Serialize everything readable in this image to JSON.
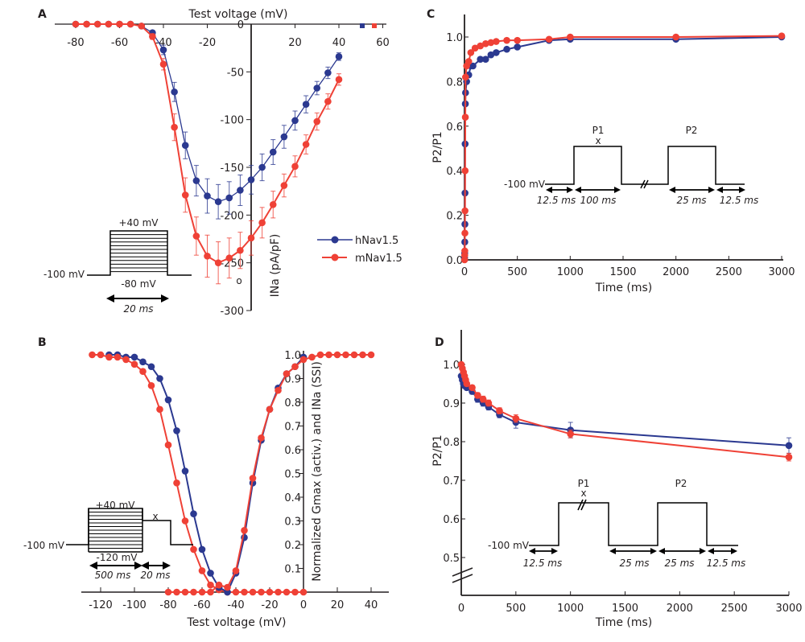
{
  "colors": {
    "hNav": "#2b3990",
    "mNav": "#ef4136",
    "axis": "#231f20"
  },
  "chart_data": [
    {
      "panel": "A",
      "type": "line",
      "title": "",
      "xlabel": "Test voltage (mV)",
      "ylabel": "INa (pA/pF)",
      "xlim": [
        -85,
        62
      ],
      "ylim": [
        -300,
        0
      ],
      "xticks": [
        -80,
        -60,
        -40,
        -20,
        20,
        40,
        60
      ],
      "xtick_labels": [
        "-80",
        "-60",
        "-40",
        "-20",
        "20",
        "40",
        "60"
      ],
      "yticks": [
        0,
        -50,
        -100,
        -150,
        -200,
        -250,
        -300
      ],
      "ytick_labels": [
        "0",
        "-50",
        "-100",
        "-150",
        "-200",
        "-250",
        "-300"
      ],
      "legend": {
        "placement": "right",
        "entries": [
          "hNav1.5",
          "mNav1.5"
        ]
      },
      "series": [
        {
          "name": "hNav1.5",
          "x": [
            -80,
            -75,
            -70,
            -65,
            -60,
            -55,
            -50,
            -45,
            -40,
            -35,
            -30,
            -25,
            -20,
            -15,
            -10,
            -5,
            0,
            5,
            10,
            15,
            20,
            25,
            30,
            35,
            40
          ],
          "y": [
            0,
            0,
            0,
            0,
            0,
            0,
            -2,
            -9,
            -27,
            -71,
            -127,
            -164,
            -180,
            -186,
            -182,
            -174,
            -163,
            -150,
            -134,
            -118,
            -101,
            -84,
            -67,
            -51,
            -34
          ],
          "err": [
            0,
            0,
            0,
            0,
            0,
            0,
            1,
            2,
            5,
            10,
            14,
            16,
            18,
            18,
            17,
            16,
            15,
            14,
            13,
            12,
            10,
            9,
            7,
            6,
            4
          ]
        },
        {
          "name": "mNav1.5",
          "x": [
            -80,
            -75,
            -70,
            -65,
            -60,
            -55,
            -50,
            -45,
            -40,
            -35,
            -30,
            -25,
            -20,
            -15,
            -10,
            -5,
            0,
            5,
            10,
            15,
            20,
            25,
            30,
            35,
            40
          ],
          "y": [
            0,
            0,
            0,
            0,
            0,
            0,
            -2,
            -13,
            -42,
            -108,
            -179,
            -222,
            -243,
            -250,
            -245,
            -237,
            -224,
            -208,
            -189,
            -169,
            -149,
            -126,
            -102,
            -81,
            -58
          ],
          "err": [
            0,
            0,
            0,
            0,
            0,
            0,
            1,
            3,
            6,
            14,
            18,
            20,
            22,
            22,
            21,
            19,
            18,
            16,
            14,
            12,
            11,
            10,
            9,
            8,
            6
          ]
        }
      ],
      "annotations": {
        "protocol_top": "+40 mV",
        "protocol_hold": "-100 mV",
        "protocol_bottom": "-80 mV",
        "protocol_duration": "20 ms",
        "stray_marker": "o"
      }
    },
    {
      "panel": "B",
      "type": "line",
      "xlabel": "Test voltage (mV)",
      "ylabel": "Normalized Gmax (activ.) and INa (SSI)",
      "xlim": [
        -130,
        50
      ],
      "ylim": [
        0,
        1.0
      ],
      "xticks": [
        -120,
        -100,
        -80,
        -60,
        -40,
        -20,
        0,
        20,
        40
      ],
      "xtick_labels": [
        "-120",
        "-100",
        "-80",
        "-60",
        "-40",
        "-20",
        "0",
        "20",
        "40"
      ],
      "yticks": [
        0.1,
        0.2,
        0.3,
        0.4,
        0.5,
        0.6,
        0.7,
        0.8,
        0.9,
        1.0
      ],
      "ytick_labels": [
        "0.1",
        "0.2",
        "0.3",
        "0.4",
        "0.5",
        "0.6",
        "0.7",
        "0.8",
        "0.9",
        "1.0"
      ],
      "series": [
        {
          "name": "hNav1.5 SSI",
          "x": [
            -115,
            -110,
            -105,
            -100,
            -95,
            -90,
            -85,
            -80,
            -75,
            -70,
            -65,
            -60,
            -55,
            -50,
            -45
          ],
          "y": [
            1.0,
            1.0,
            0.99,
            0.99,
            0.97,
            0.95,
            0.9,
            0.81,
            0.68,
            0.51,
            0.33,
            0.18,
            0.08,
            0.02,
            0.0
          ]
        },
        {
          "name": "mNav1.5 SSI",
          "x": [
            -125,
            -120,
            -115,
            -110,
            -105,
            -100,
            -95,
            -90,
            -85,
            -80,
            -75,
            -70,
            -65,
            -60,
            -55,
            -50,
            -45,
            -40,
            -35,
            -30,
            -25,
            -20,
            -15,
            -10,
            -5,
            0
          ],
          "y": [
            1.0,
            1.0,
            0.99,
            0.99,
            0.98,
            0.96,
            0.93,
            0.87,
            0.77,
            0.62,
            0.46,
            0.3,
            0.18,
            0.09,
            0.03,
            0.01,
            0.0,
            0,
            0,
            0,
            0,
            0,
            0,
            0,
            0,
            0
          ]
        },
        {
          "name": "hNav1.5 activation",
          "x": [
            -50,
            -45,
            -40,
            -35,
            -30,
            -25,
            -20,
            -15,
            -10,
            -5,
            0
          ],
          "y": [
            0.02,
            0.0,
            0.08,
            0.23,
            0.46,
            0.64,
            0.77,
            0.86,
            0.92,
            0.95,
            0.99
          ]
        },
        {
          "name": "mNav1.5 activation",
          "x": [
            -80,
            -75,
            -70,
            -65,
            -60,
            -55,
            -50,
            -45,
            -40,
            -35,
            -30,
            -25,
            -20,
            -15,
            -10,
            -5,
            0,
            5,
            10,
            15,
            20,
            25,
            30,
            35,
            40
          ],
          "y": [
            0,
            0,
            0,
            0,
            0,
            0,
            0.03,
            0.02,
            0.09,
            0.26,
            0.48,
            0.65,
            0.77,
            0.85,
            0.92,
            0.95,
            0.98,
            0.99,
            1.0,
            1.0,
            1.0,
            1.0,
            1.0,
            1.0,
            1.0
          ]
        }
      ],
      "annotations": {
        "protocol_top": "+40 mV",
        "protocol_hold": "-100 mV",
        "protocol_bottom": "-120 mV",
        "protocol_x": "x",
        "duration_1": "500 ms",
        "duration_2": "20 ms"
      }
    },
    {
      "panel": "C",
      "type": "line",
      "xlabel": "Time (ms)",
      "ylabel": "P2/P1",
      "xlim": [
        0,
        3000
      ],
      "ylim": [
        0,
        1.0
      ],
      "xticks": [
        0,
        500,
        1000,
        1500,
        2000,
        2500,
        3000
      ],
      "xtick_labels": [
        "0",
        "500",
        "1000",
        "1500",
        "2000",
        "2500",
        "3000"
      ],
      "yticks": [
        0.0,
        0.2,
        0.4,
        0.6,
        0.8,
        1.0
      ],
      "ytick_labels": [
        "0.0",
        "0.2",
        "0.4",
        "0.6",
        "0.8",
        "1.0"
      ],
      "series": [
        {
          "name": "hNav1.5",
          "x": [
            1,
            2,
            3,
            4,
            5,
            6,
            8,
            10,
            20,
            40,
            60,
            80,
            150,
            200,
            250,
            300,
            400,
            500,
            800,
            1000,
            2000,
            3000
          ],
          "y": [
            0.01,
            0.03,
            0.08,
            0.16,
            0.3,
            0.52,
            0.7,
            0.75,
            0.8,
            0.83,
            0.87,
            0.87,
            0.9,
            0.9,
            0.92,
            0.93,
            0.945,
            0.955,
            0.985,
            0.99,
            0.99,
            1.0
          ]
        },
        {
          "name": "mNav1.5",
          "x": [
            1,
            2,
            3,
            4,
            5,
            6,
            8,
            10,
            20,
            40,
            60,
            100,
            150,
            200,
            250,
            300,
            400,
            500,
            800,
            1000,
            2000,
            3000
          ],
          "y": [
            0.0,
            0.02,
            0.04,
            0.12,
            0.22,
            0.4,
            0.64,
            0.82,
            0.87,
            0.89,
            0.93,
            0.95,
            0.96,
            0.97,
            0.975,
            0.98,
            0.985,
            0.985,
            0.99,
            1.0,
            1.0,
            1.005
          ]
        }
      ],
      "annotations": {
        "p1": "P1",
        "p2": "P2",
        "x_mark": "x",
        "hold": "-100 mV",
        "d1": "12.5 ms",
        "d2": "100 ms",
        "d3": "25 ms",
        "d4": "12.5 ms"
      }
    },
    {
      "panel": "D",
      "type": "line",
      "xlabel": "Time (ms)",
      "ylabel": "P2/P1",
      "xlim": [
        0,
        3000
      ],
      "ylim": [
        0.5,
        1.0
      ],
      "axis_break": true,
      "xticks": [
        0,
        500,
        1000,
        1500,
        2000,
        2500,
        3000
      ],
      "xtick_labels": [
        "0",
        "500",
        "1000",
        "1500",
        "2000",
        "2500",
        "3000"
      ],
      "yticks": [
        0.5,
        0.6,
        0.7,
        0.8,
        0.9,
        1.0
      ],
      "ytick_labels": [
        "0.5",
        "0.6",
        "0.7",
        "0.8",
        "0.9",
        "1.0"
      ],
      "series": [
        {
          "name": "hNav1.5",
          "x": [
            0,
            10,
            20,
            30,
            50,
            100,
            150,
            200,
            250,
            350,
            500,
            1000,
            3000
          ],
          "y": [
            0.97,
            0.96,
            0.95,
            0.945,
            0.94,
            0.93,
            0.91,
            0.9,
            0.89,
            0.87,
            0.85,
            0.83,
            0.79
          ],
          "err": [
            0.005,
            0.005,
            0.005,
            0.005,
            0.006,
            0.007,
            0.008,
            0.008,
            0.008,
            0.008,
            0.015,
            0.02,
            0.02
          ]
        },
        {
          "name": "mNav1.5",
          "x": [
            0,
            10,
            20,
            30,
            40,
            50,
            100,
            150,
            200,
            250,
            350,
            500,
            1000,
            3000
          ],
          "y": [
            1.0,
            0.99,
            0.98,
            0.97,
            0.96,
            0.95,
            0.94,
            0.92,
            0.91,
            0.9,
            0.88,
            0.86,
            0.82,
            0.76
          ],
          "err": [
            0.004,
            0.004,
            0.004,
            0.005,
            0.005,
            0.006,
            0.006,
            0.007,
            0.008,
            0.008,
            0.008,
            0.01,
            0.01,
            0.01
          ]
        }
      ],
      "annotations": {
        "p1": "P1",
        "p2": "P2",
        "x_mark": "x",
        "hold": "-100 mV",
        "d1": "12.5 ms",
        "d2": "25 ms",
        "d3": "25 ms",
        "d4": "12.5 ms"
      }
    }
  ]
}
